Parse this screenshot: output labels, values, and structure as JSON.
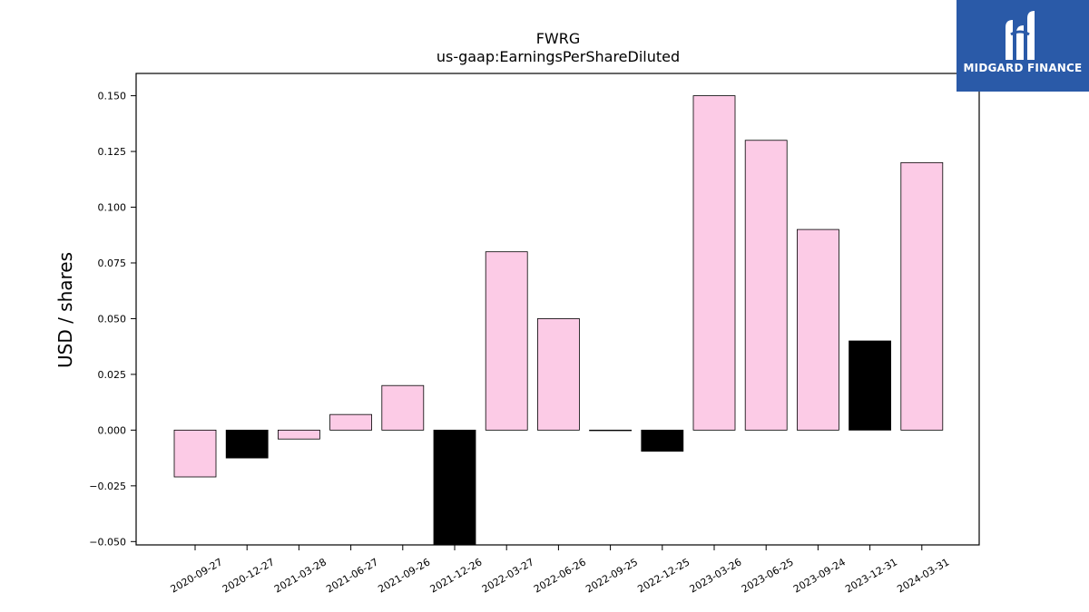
{
  "chart_data": {
    "type": "bar",
    "title": "FWRG",
    "subtitle": "us-gaap:EarningsPerShareDiluted",
    "xlabel": "",
    "ylabel": "USD / shares",
    "ylim": [
      -0.0515,
      0.16
    ],
    "yticks": [
      -0.05,
      -0.025,
      0.0,
      0.025,
      0.05,
      0.075,
      0.1,
      0.125,
      0.15
    ],
    "ytick_labels": [
      "−0.050",
      "−0.025",
      "0.000",
      "0.025",
      "0.050",
      "0.075",
      "0.100",
      "0.125",
      "0.150"
    ],
    "categories": [
      "2020-09-27",
      "2020-12-27",
      "2021-03-28",
      "2021-06-27",
      "2021-09-26",
      "2021-12-26",
      "2022-03-27",
      "2022-06-26",
      "2022-09-25",
      "2022-12-25",
      "2023-03-26",
      "2023-06-25",
      "2023-09-24",
      "2023-12-31",
      "2024-03-31"
    ],
    "values": [
      -0.021,
      -0.0125,
      -0.004,
      0.007,
      0.02,
      -0.06,
      0.08,
      0.05,
      0.0,
      -0.0095,
      0.15,
      0.13,
      0.09,
      0.04,
      0.12
    ],
    "bar_colors": [
      "#fccbe6",
      "#000000",
      "#fccbe6",
      "#fccbe6",
      "#fccbe6",
      "#000000",
      "#fccbe6",
      "#fccbe6",
      "#fccbe6",
      "#000000",
      "#fccbe6",
      "#fccbe6",
      "#fccbe6",
      "#000000",
      "#fccbe6"
    ],
    "grid": false,
    "legend": "none"
  },
  "logo": {
    "text": "MIDGARD FINANCE",
    "background": "#2a5aa8",
    "icon": "midgard-m-logo-icon"
  }
}
